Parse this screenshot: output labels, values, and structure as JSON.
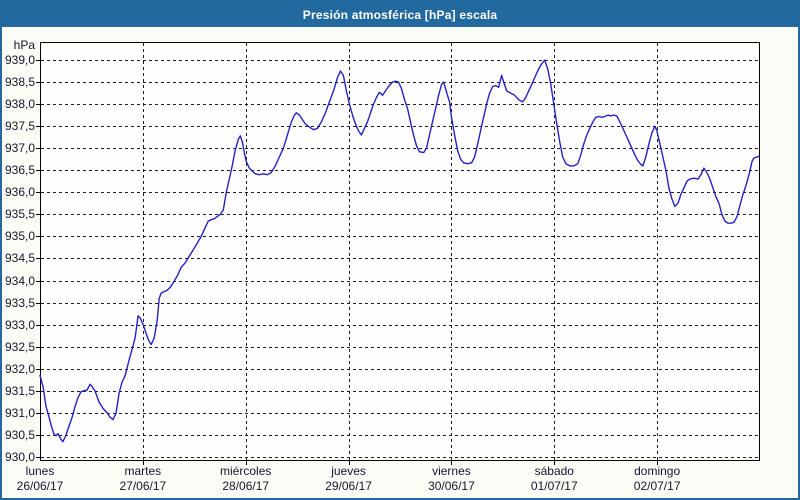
{
  "window": {
    "title": "Presión atmosférica [hPa] escala"
  },
  "colors": {
    "titlebar_bg": "#21699e",
    "window_border": "#21699e",
    "title_text": "#ffffff",
    "page_bg": "#fcfcf6",
    "plot_bg": "#fefefe",
    "grid": "#1c1c1c",
    "axis_text": "#15152d",
    "series_line": "#2323c3"
  },
  "chart_data": {
    "type": "line",
    "title": "Presión atmosférica [hPa] escala",
    "y_unit": "hPa",
    "ylim": [
      930.0,
      939.5
    ],
    "y_tick_values": [
      939.0,
      938.5,
      938.0,
      937.5,
      937.0,
      936.5,
      936.0,
      935.5,
      935.0,
      934.5,
      934.0,
      933.5,
      933.0,
      932.5,
      932.0,
      931.5,
      931.0,
      930.5,
      930.0
    ],
    "y_tick_labels": [
      "939,0",
      "938,5",
      "938,0",
      "937,5",
      "937,0",
      "936,5",
      "936,0",
      "935,5",
      "935,0",
      "934,5",
      "934,0",
      "933,5",
      "933,0",
      "932,5",
      "932,0",
      "931,5",
      "931,0",
      "930,5",
      "930,0"
    ],
    "grid": "dashed horizontal and vertical, legend none",
    "x_axis": {
      "unit": "days",
      "days": [
        {
          "name": "lunes",
          "date": "26/06/17"
        },
        {
          "name": "martes",
          "date": "27/06/17"
        },
        {
          "name": "miércoles",
          "date": "28/06/17"
        },
        {
          "name": "jueves",
          "date": "29/06/17"
        },
        {
          "name": "viernes",
          "date": "30/06/17"
        },
        {
          "name": "sábado",
          "date": "01/07/17"
        },
        {
          "name": "domingo",
          "date": "02/07/17"
        }
      ]
    },
    "series": [
      {
        "name": "Presión atmosférica",
        "unit": "hPa",
        "points_t_days_hpa": [
          [
            0.0,
            931.85
          ],
          [
            0.029,
            931.6
          ],
          [
            0.058,
            931.15
          ],
          [
            0.088,
            930.9
          ],
          [
            0.117,
            930.65
          ],
          [
            0.136,
            930.52
          ],
          [
            0.156,
            930.48
          ],
          [
            0.175,
            930.53
          ],
          [
            0.204,
            930.4
          ],
          [
            0.224,
            930.35
          ],
          [
            0.253,
            930.5
          ],
          [
            0.282,
            930.7
          ],
          [
            0.312,
            930.9
          ],
          [
            0.341,
            931.15
          ],
          [
            0.37,
            931.35
          ],
          [
            0.399,
            931.48
          ],
          [
            0.428,
            931.5
          ],
          [
            0.458,
            931.52
          ],
          [
            0.487,
            931.65
          ],
          [
            0.506,
            931.6
          ],
          [
            0.535,
            931.5
          ],
          [
            0.574,
            931.25
          ],
          [
            0.613,
            931.1
          ],
          [
            0.652,
            931.0
          ],
          [
            0.682,
            930.9
          ],
          [
            0.711,
            930.85
          ],
          [
            0.74,
            931.0
          ],
          [
            0.769,
            931.45
          ],
          [
            0.798,
            931.7
          ],
          [
            0.828,
            931.85
          ],
          [
            0.866,
            932.2
          ],
          [
            0.896,
            932.45
          ],
          [
            0.925,
            932.7
          ],
          [
            0.954,
            933.2
          ],
          [
            0.974,
            933.15
          ],
          [
            1.003,
            933.0
          ],
          [
            1.032,
            932.8
          ],
          [
            1.061,
            932.62
          ],
          [
            1.081,
            932.55
          ],
          [
            1.11,
            932.7
          ],
          [
            1.139,
            933.1
          ],
          [
            1.159,
            933.6
          ],
          [
            1.178,
            933.72
          ],
          [
            1.207,
            933.75
          ],
          [
            1.236,
            933.78
          ],
          [
            1.266,
            933.85
          ],
          [
            1.295,
            933.95
          ],
          [
            1.334,
            934.1
          ],
          [
            1.373,
            934.3
          ],
          [
            1.412,
            934.4
          ],
          [
            1.451,
            934.55
          ],
          [
            1.49,
            934.7
          ],
          [
            1.529,
            934.85
          ],
          [
            1.567,
            935.0
          ],
          [
            1.606,
            935.2
          ],
          [
            1.636,
            935.35
          ],
          [
            1.665,
            935.38
          ],
          [
            1.694,
            935.4
          ],
          [
            1.723,
            935.45
          ],
          [
            1.752,
            935.5
          ],
          [
            1.782,
            935.6
          ],
          [
            1.811,
            936.0
          ],
          [
            1.84,
            936.3
          ],
          [
            1.869,
            936.6
          ],
          [
            1.898,
            936.95
          ],
          [
            1.928,
            937.2
          ],
          [
            1.947,
            937.28
          ],
          [
            1.967,
            937.15
          ],
          [
            1.986,
            936.9
          ],
          [
            2.006,
            936.7
          ],
          [
            2.035,
            936.55
          ],
          [
            2.064,
            936.48
          ],
          [
            2.093,
            936.42
          ],
          [
            2.132,
            936.4
          ],
          [
            2.171,
            936.42
          ],
          [
            2.21,
            936.4
          ],
          [
            2.249,
            936.45
          ],
          [
            2.288,
            936.6
          ],
          [
            2.327,
            936.8
          ],
          [
            2.366,
            937.0
          ],
          [
            2.405,
            937.3
          ],
          [
            2.444,
            937.6
          ],
          [
            2.473,
            937.75
          ],
          [
            2.493,
            937.8
          ],
          [
            2.522,
            937.75
          ],
          [
            2.551,
            937.65
          ],
          [
            2.58,
            937.55
          ],
          [
            2.619,
            937.48
          ],
          [
            2.658,
            937.42
          ],
          [
            2.697,
            937.45
          ],
          [
            2.736,
            937.6
          ],
          [
            2.775,
            937.8
          ],
          [
            2.814,
            938.05
          ],
          [
            2.853,
            938.3
          ],
          [
            2.892,
            938.6
          ],
          [
            2.921,
            938.75
          ],
          [
            2.95,
            938.65
          ],
          [
            2.979,
            938.3
          ],
          [
            3.008,
            938.0
          ],
          [
            3.038,
            937.75
          ],
          [
            3.067,
            937.55
          ],
          [
            3.096,
            937.4
          ],
          [
            3.125,
            937.3
          ],
          [
            3.154,
            937.45
          ],
          [
            3.184,
            937.6
          ],
          [
            3.213,
            937.8
          ],
          [
            3.242,
            938.0
          ],
          [
            3.271,
            938.15
          ],
          [
            3.3,
            938.27
          ],
          [
            3.33,
            938.2
          ],
          [
            3.359,
            938.3
          ],
          [
            3.388,
            938.4
          ],
          [
            3.427,
            938.5
          ],
          [
            3.456,
            938.52
          ],
          [
            3.485,
            938.5
          ],
          [
            3.515,
            938.35
          ],
          [
            3.544,
            938.1
          ],
          [
            3.573,
            937.9
          ],
          [
            3.602,
            937.6
          ],
          [
            3.631,
            937.3
          ],
          [
            3.661,
            937.05
          ],
          [
            3.69,
            936.92
          ],
          [
            3.729,
            936.9
          ],
          [
            3.758,
            937.0
          ],
          [
            3.787,
            937.3
          ],
          [
            3.816,
            937.6
          ],
          [
            3.846,
            937.9
          ],
          [
            3.875,
            938.2
          ],
          [
            3.904,
            938.45
          ],
          [
            3.923,
            938.5
          ],
          [
            3.943,
            938.35
          ],
          [
            3.962,
            938.2
          ],
          [
            3.982,
            938.05
          ],
          [
            4.001,
            937.7
          ],
          [
            4.031,
            937.3
          ],
          [
            4.06,
            936.95
          ],
          [
            4.089,
            936.75
          ],
          [
            4.118,
            936.67
          ],
          [
            4.157,
            936.65
          ],
          [
            4.196,
            936.67
          ],
          [
            4.225,
            936.8
          ],
          [
            4.255,
            937.1
          ],
          [
            4.284,
            937.4
          ],
          [
            4.313,
            937.7
          ],
          [
            4.342,
            938.0
          ],
          [
            4.371,
            938.25
          ],
          [
            4.401,
            938.4
          ],
          [
            4.43,
            938.42
          ],
          [
            4.459,
            938.38
          ],
          [
            4.488,
            938.65
          ],
          [
            4.508,
            938.5
          ],
          [
            4.537,
            938.3
          ],
          [
            4.576,
            938.25
          ],
          [
            4.615,
            938.2
          ],
          [
            4.654,
            938.1
          ],
          [
            4.693,
            938.05
          ],
          [
            4.722,
            938.15
          ],
          [
            4.751,
            938.3
          ],
          [
            4.781,
            938.45
          ],
          [
            4.81,
            938.6
          ],
          [
            4.839,
            938.75
          ],
          [
            4.868,
            938.88
          ],
          [
            4.907,
            939.0
          ],
          [
            4.936,
            938.8
          ],
          [
            4.966,
            938.45
          ],
          [
            4.995,
            938.0
          ],
          [
            5.024,
            937.55
          ],
          [
            5.053,
            937.15
          ],
          [
            5.082,
            936.8
          ],
          [
            5.112,
            936.65
          ],
          [
            5.151,
            936.6
          ],
          [
            5.19,
            936.6
          ],
          [
            5.229,
            936.65
          ],
          [
            5.258,
            936.85
          ],
          [
            5.287,
            937.1
          ],
          [
            5.316,
            937.3
          ],
          [
            5.345,
            937.45
          ],
          [
            5.375,
            937.6
          ],
          [
            5.404,
            937.7
          ],
          [
            5.433,
            937.72
          ],
          [
            5.462,
            937.7
          ],
          [
            5.491,
            937.72
          ],
          [
            5.521,
            937.75
          ],
          [
            5.55,
            937.73
          ],
          [
            5.579,
            937.75
          ],
          [
            5.608,
            937.73
          ],
          [
            5.637,
            937.6
          ],
          [
            5.667,
            937.45
          ],
          [
            5.696,
            937.3
          ],
          [
            5.725,
            937.15
          ],
          [
            5.754,
            937.0
          ],
          [
            5.783,
            936.85
          ],
          [
            5.812,
            936.72
          ],
          [
            5.842,
            936.63
          ],
          [
            5.861,
            936.6
          ],
          [
            5.89,
            936.8
          ],
          [
            5.92,
            937.1
          ],
          [
            5.949,
            937.35
          ],
          [
            5.978,
            937.5
          ],
          [
            5.997,
            937.4
          ],
          [
            6.027,
            937.1
          ],
          [
            6.056,
            936.8
          ],
          [
            6.085,
            936.5
          ],
          [
            6.114,
            936.1
          ],
          [
            6.143,
            935.85
          ],
          [
            6.172,
            935.68
          ],
          [
            6.202,
            935.75
          ],
          [
            6.231,
            935.95
          ],
          [
            6.26,
            936.1
          ],
          [
            6.289,
            936.25
          ],
          [
            6.318,
            936.3
          ],
          [
            6.357,
            936.32
          ],
          [
            6.396,
            936.3
          ],
          [
            6.426,
            936.4
          ],
          [
            6.455,
            936.55
          ],
          [
            6.484,
            936.45
          ],
          [
            6.513,
            936.3
          ],
          [
            6.542,
            936.1
          ],
          [
            6.571,
            935.9
          ],
          [
            6.601,
            935.75
          ],
          [
            6.63,
            935.5
          ],
          [
            6.659,
            935.35
          ],
          [
            6.688,
            935.3
          ],
          [
            6.718,
            935.3
          ],
          [
            6.747,
            935.32
          ],
          [
            6.776,
            935.45
          ],
          [
            6.805,
            935.7
          ],
          [
            6.834,
            935.95
          ],
          [
            6.863,
            936.15
          ],
          [
            6.893,
            936.4
          ],
          [
            6.922,
            936.7
          ],
          [
            6.941,
            936.78
          ],
          [
            6.97,
            936.8
          ],
          [
            6.99,
            936.82
          ]
        ]
      }
    ]
  }
}
